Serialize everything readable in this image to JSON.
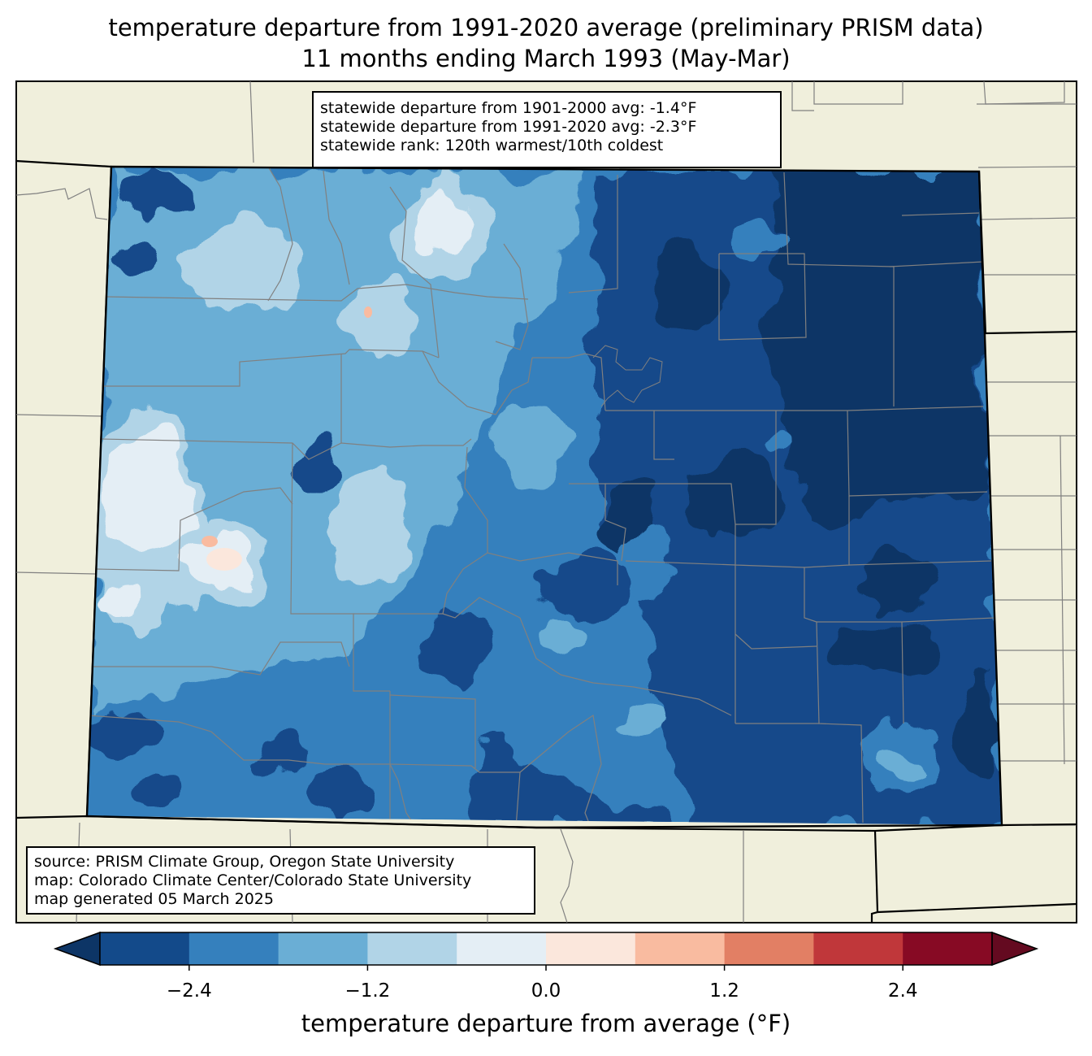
{
  "title": {
    "line1": "temperature departure from 1991-2020 average (preliminary PRISM data)",
    "line2": "11 months ending March 1993 (May-Mar)"
  },
  "stats": {
    "line1": "statewide departure from 1901-2000 avg: -1.4°F",
    "line2": "statewide departure from 1991-2020 avg: -2.3°F",
    "line3": "statewide rank: 120th warmest/10th coldest"
  },
  "source": {
    "line1": "source: PRISM Climate Group, Oregon State University",
    "line2": "map: Colorado Climate Center/Colorado State University",
    "line3": "map generated 05 March 2025"
  },
  "colorbar": {
    "label": "temperature departure from average (°F)",
    "ticks": [
      "−2.4",
      "−1.2",
      "0.0",
      "1.2",
      "2.4"
    ],
    "tick_values": [
      -2.4,
      -1.2,
      0.0,
      1.2,
      2.4
    ],
    "range": [
      -3.0,
      3.0
    ],
    "colors": [
      "#0d3566",
      "#134a8a",
      "#3580bd",
      "#6aaed5",
      "#b1d4e7",
      "#e4eef5",
      "#fbe7dc",
      "#f9bba0",
      "#e27f64",
      "#c0373a",
      "#870a24",
      "#640a20"
    ]
  },
  "map_colors": {
    "land": "#f0efdc",
    "border": "#000000",
    "county_lines": "#808080"
  }
}
